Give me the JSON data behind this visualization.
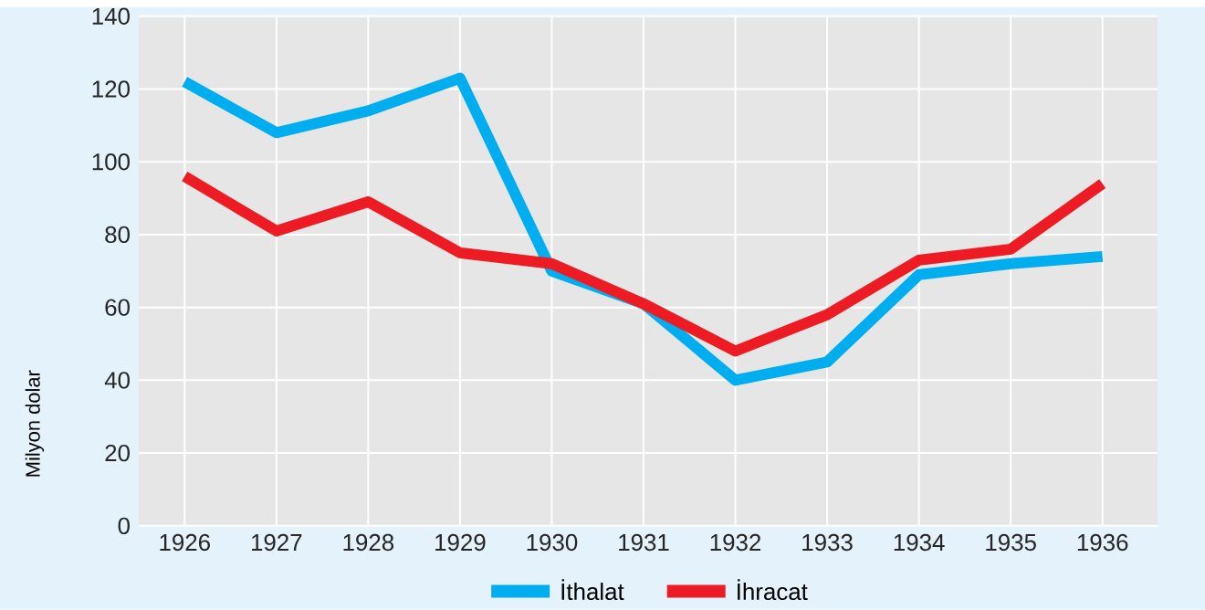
{
  "chart_data": {
    "type": "line",
    "ylabel": "Milyon dolar",
    "categories": [
      "1926",
      "1927",
      "1928",
      "1929",
      "1930",
      "1931",
      "1932",
      "1933",
      "1934",
      "1935",
      "1936"
    ],
    "series": [
      {
        "name": "İthalat",
        "color": "#00aeef",
        "values": [
          122,
          108,
          114,
          123,
          70,
          61,
          40,
          45,
          69,
          72,
          74
        ]
      },
      {
        "name": "İhracat",
        "color": "#ed1c24",
        "values": [
          96,
          81,
          89,
          75,
          72,
          61,
          48,
          58,
          73,
          76,
          94
        ]
      }
    ],
    "ylim": [
      0,
      140
    ],
    "yticks": [
      0,
      20,
      40,
      60,
      80,
      100,
      120,
      140
    ],
    "grid": true,
    "legend": "bottom",
    "marker": "none",
    "line_style": "solid"
  }
}
